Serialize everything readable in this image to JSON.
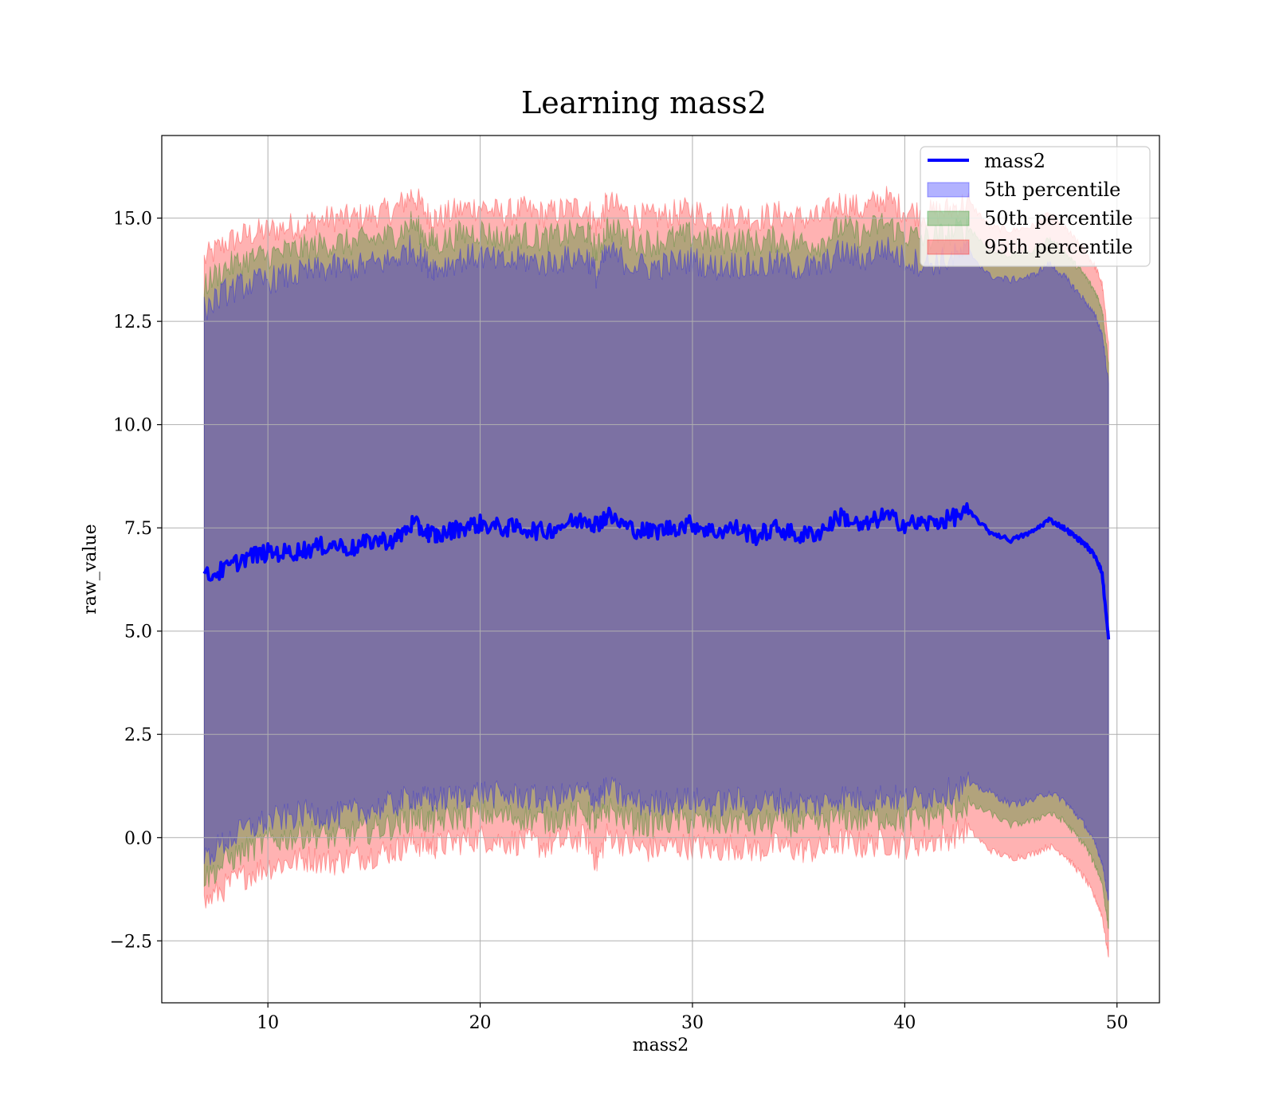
{
  "chart_data": {
    "type": "line",
    "title": "Learning mass2",
    "xlabel": "mass2",
    "ylabel": "raw_value",
    "xlim": [
      5,
      52
    ],
    "ylim": [
      -4,
      17
    ],
    "xticks": [
      10,
      20,
      30,
      40,
      50
    ],
    "xtick_labels": [
      "10",
      "20",
      "30",
      "40",
      "50"
    ],
    "yticks": [
      -2.5,
      0.0,
      2.5,
      5.0,
      7.5,
      10.0,
      12.5,
      15.0
    ],
    "ytick_labels": [
      "−2.5",
      "0.0",
      "2.5",
      "5.0",
      "7.5",
      "10.0",
      "12.5",
      "15.0"
    ],
    "grid": true,
    "legend_position": "top-right",
    "colors": {
      "line": "#0000ff",
      "p5": "#0000ff",
      "p50": "#008000",
      "p95": "#ff0000"
    },
    "legend": [
      "mass2",
      "5th percentile",
      "50th percentile",
      "95th percentile"
    ],
    "x": [
      7.0,
      8.0,
      9.0,
      10.0,
      11.0,
      12.0,
      13.0,
      14.0,
      15.0,
      16.0,
      16.8,
      17.5,
      18.0,
      19.0,
      20.0,
      21.0,
      22.0,
      23.0,
      24.0,
      25.0,
      25.5,
      26.0,
      27.0,
      28.0,
      29.0,
      30.0,
      31.0,
      32.0,
      33.0,
      34.0,
      35.0,
      36.0,
      37.0,
      38.0,
      39.0,
      40.0,
      41.0,
      42.0,
      43.0,
      44.0,
      45.0,
      46.0,
      46.8,
      47.5,
      48.0,
      48.5,
      49.0,
      49.3,
      49.6
    ],
    "series": [
      {
        "name": "mass2",
        "values": [
          6.3,
          6.5,
          6.8,
          6.9,
          6.9,
          7.0,
          7.1,
          7.0,
          7.2,
          7.2,
          7.6,
          7.4,
          7.3,
          7.5,
          7.6,
          7.5,
          7.5,
          7.4,
          7.6,
          7.7,
          7.6,
          7.8,
          7.5,
          7.4,
          7.5,
          7.6,
          7.4,
          7.5,
          7.3,
          7.5,
          7.3,
          7.4,
          7.8,
          7.5,
          7.8,
          7.6,
          7.6,
          7.7,
          7.9,
          7.4,
          7.2,
          7.4,
          7.7,
          7.5,
          7.3,
          7.1,
          6.8,
          6.4,
          4.8
        ]
      },
      {
        "name": "5th percentile",
        "lower": [
          -0.5,
          -0.1,
          0.2,
          0.4,
          0.5,
          0.6,
          0.5,
          0.6,
          0.7,
          0.8,
          1.0,
          0.9,
          0.9,
          1.0,
          1.1,
          1.0,
          1.0,
          0.9,
          1.0,
          1.1,
          0.9,
          1.2,
          0.9,
          0.8,
          0.9,
          0.9,
          0.8,
          0.9,
          0.8,
          0.9,
          0.8,
          0.8,
          1.0,
          0.9,
          1.0,
          0.9,
          1.0,
          1.1,
          1.3,
          1.1,
          0.8,
          0.9,
          1.1,
          0.9,
          0.6,
          0.3,
          -0.2,
          -0.6,
          -1.5
        ],
        "upper": [
          12.8,
          13.2,
          13.4,
          13.5,
          13.6,
          13.7,
          13.8,
          13.8,
          13.9,
          14.0,
          14.3,
          13.9,
          13.8,
          14.0,
          14.1,
          13.9,
          14.0,
          13.9,
          14.0,
          14.1,
          13.6,
          14.2,
          13.9,
          13.8,
          13.9,
          14.0,
          13.8,
          13.9,
          13.8,
          13.9,
          13.8,
          13.8,
          14.2,
          14.0,
          14.3,
          14.0,
          13.9,
          14.0,
          14.2,
          13.6,
          13.5,
          13.6,
          13.9,
          13.6,
          13.3,
          13.0,
          12.6,
          12.2,
          11.0
        ]
      },
      {
        "name": "50th percentile",
        "lower": [
          -1.0,
          -0.6,
          -0.3,
          -0.1,
          0.0,
          0.1,
          0.0,
          0.1,
          0.2,
          0.3,
          0.5,
          0.4,
          0.4,
          0.5,
          0.6,
          0.5,
          0.5,
          0.4,
          0.5,
          0.6,
          0.3,
          0.7,
          0.4,
          0.3,
          0.4,
          0.4,
          0.3,
          0.4,
          0.3,
          0.4,
          0.3,
          0.3,
          0.5,
          0.4,
          0.5,
          0.4,
          0.5,
          0.6,
          0.8,
          0.6,
          0.3,
          0.4,
          0.6,
          0.4,
          0.1,
          -0.2,
          -0.7,
          -1.1,
          -2.2
        ],
        "upper": [
          13.4,
          13.8,
          14.0,
          14.1,
          14.2,
          14.3,
          14.4,
          14.4,
          14.5,
          14.6,
          14.9,
          14.5,
          14.4,
          14.6,
          14.7,
          14.5,
          14.6,
          14.5,
          14.6,
          14.7,
          14.2,
          14.8,
          14.5,
          14.4,
          14.5,
          14.6,
          14.4,
          14.5,
          14.4,
          14.5,
          14.4,
          14.4,
          14.8,
          14.6,
          14.9,
          14.6,
          14.5,
          14.6,
          14.8,
          14.2,
          14.1,
          14.2,
          14.5,
          14.2,
          13.9,
          13.6,
          13.2,
          12.8,
          11.5
        ]
      },
      {
        "name": "95th percentile",
        "lower": [
          -1.6,
          -1.2,
          -0.9,
          -0.7,
          -0.6,
          -0.5,
          -0.6,
          -0.5,
          -0.4,
          -0.3,
          -0.1,
          -0.2,
          -0.2,
          -0.1,
          0.0,
          -0.1,
          -0.1,
          -0.2,
          -0.1,
          0.0,
          -0.6,
          0.1,
          -0.2,
          -0.3,
          -0.2,
          -0.2,
          -0.3,
          -0.2,
          -0.3,
          -0.2,
          -0.3,
          -0.3,
          -0.1,
          -0.2,
          -0.1,
          -0.2,
          -0.1,
          0.0,
          0.2,
          -0.3,
          -0.5,
          -0.4,
          -0.2,
          -0.4,
          -0.7,
          -1.0,
          -1.5,
          -1.9,
          -2.9
        ],
        "upper": [
          14.0,
          14.4,
          14.6,
          14.7,
          14.8,
          14.9,
          15.0,
          15.0,
          15.1,
          15.2,
          15.6,
          15.1,
          15.0,
          15.2,
          15.3,
          15.1,
          15.2,
          15.1,
          15.2,
          15.3,
          14.8,
          15.4,
          15.1,
          15.0,
          15.1,
          15.2,
          15.0,
          15.1,
          15.0,
          15.1,
          15.0,
          15.0,
          15.4,
          15.2,
          15.5,
          15.2,
          15.1,
          15.2,
          15.4,
          14.8,
          14.7,
          14.8,
          15.1,
          14.8,
          14.5,
          14.2,
          13.8,
          13.4,
          12.0
        ]
      }
    ]
  }
}
